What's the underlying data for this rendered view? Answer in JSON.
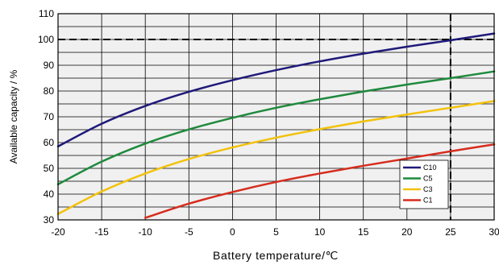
{
  "chart_data": {
    "type": "line",
    "xlabel": "Battery temperature/℃",
    "ylabel": "Available capacity / %",
    "xlim": [
      -20,
      30
    ],
    "ylim": [
      30,
      110
    ],
    "x_ticks": [
      -20,
      -15,
      -10,
      -5,
      0,
      5,
      10,
      15,
      20,
      25,
      30
    ],
    "y_ticks": [
      30,
      40,
      50,
      60,
      70,
      80,
      90,
      100,
      110
    ],
    "grid": true,
    "legend_position": "bottom-right",
    "series": [
      {
        "name": "C10",
        "color": "#1f1a7a",
        "x": [
          -20,
          -15,
          -10,
          -5,
          0,
          5,
          10,
          15,
          20,
          25,
          30
        ],
        "y": [
          58.5,
          67.3,
          74.2,
          79.7,
          84.2,
          88.1,
          91.5,
          94.5,
          97.2,
          99.7,
          102.3
        ]
      },
      {
        "name": "C5",
        "color": "#1e8a3c",
        "x": [
          -20,
          -15,
          -10,
          -5,
          0,
          5,
          10,
          15,
          20,
          25,
          30
        ],
        "y": [
          43.8,
          52.6,
          59.6,
          65.1,
          69.6,
          73.5,
          76.8,
          79.8,
          82.5,
          85.0,
          87.6
        ]
      },
      {
        "name": "C3",
        "color": "#f2c20c",
        "x": [
          -20,
          -15,
          -10,
          -5,
          0,
          5,
          10,
          15,
          20,
          25,
          30
        ],
        "y": [
          32.3,
          41.0,
          48.0,
          53.6,
          58.1,
          61.9,
          65.2,
          68.2,
          70.9,
          73.5,
          76.1
        ]
      },
      {
        "name": "C1",
        "color": "#d62c1e",
        "x": [
          -10,
          -5,
          0,
          5,
          10,
          15,
          20,
          25,
          30
        ],
        "y": [
          30.8,
          36.3,
          40.8,
          44.7,
          48.0,
          51.0,
          53.8,
          56.6,
          59.3
        ]
      }
    ],
    "reference_lines": [
      {
        "orientation": "horizontal",
        "value": 100,
        "style": "dashed"
      },
      {
        "orientation": "vertical",
        "value": 25,
        "style": "dashed"
      }
    ]
  }
}
